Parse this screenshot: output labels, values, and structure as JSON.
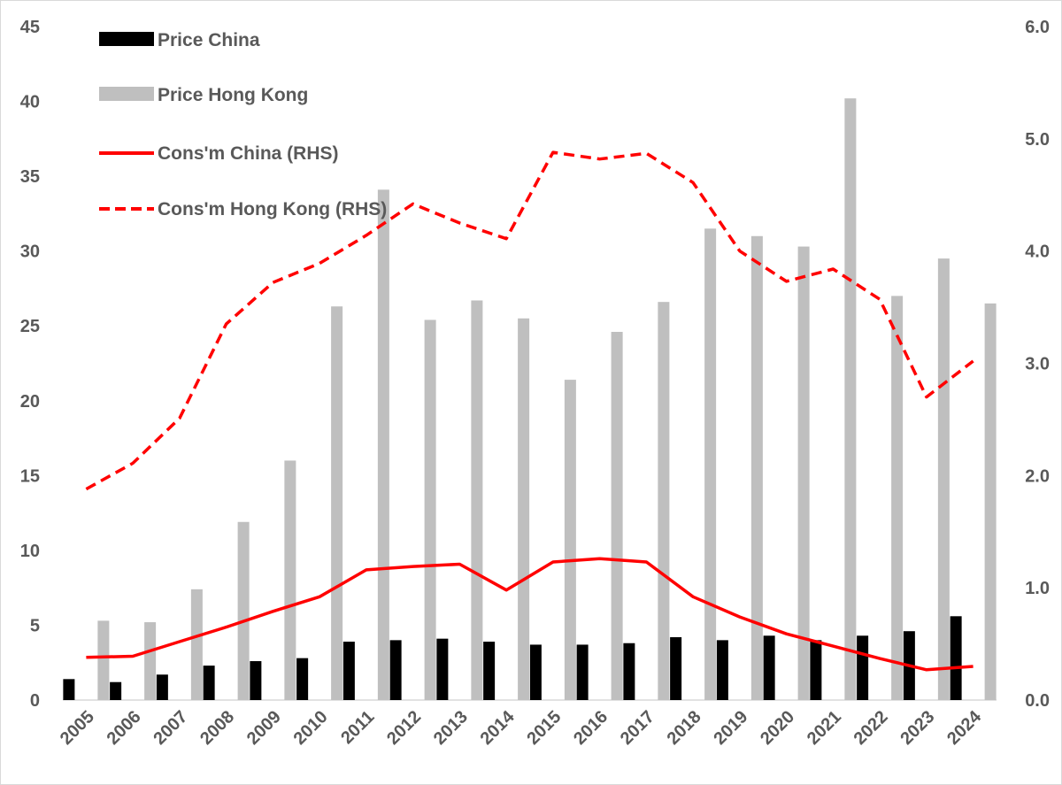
{
  "chart_data": {
    "type": "bar+line",
    "categories": [
      "2005",
      "2006",
      "2007",
      "2008",
      "2009",
      "2010",
      "2011",
      "2012",
      "2013",
      "2014",
      "2015",
      "2016",
      "2017",
      "2018",
      "2019",
      "2020",
      "2021",
      "2022",
      "2023",
      "2024"
    ],
    "bar_series": [
      {
        "name": "Price China",
        "axis": "left",
        "color": "#000000",
        "values": [
          1.4,
          1.2,
          1.7,
          2.3,
          2.6,
          2.8,
          3.9,
          4.0,
          4.1,
          3.9,
          3.7,
          3.7,
          3.8,
          4.2,
          4.0,
          4.3,
          4.0,
          4.3,
          4.6,
          5.6
        ]
      },
      {
        "name": "Price Hong Kong",
        "axis": "left",
        "color": "#bfbfbf",
        "values": [
          5.3,
          5.2,
          7.4,
          11.9,
          16.0,
          26.3,
          34.1,
          25.4,
          26.7,
          25.5,
          21.4,
          24.6,
          26.6,
          31.5,
          31.0,
          30.3,
          40.2,
          27.0,
          29.5,
          26.5
        ]
      }
    ],
    "line_series": [
      {
        "name": "Cons'm China (RHS)",
        "axis": "right",
        "color": "#ff0000",
        "style": "solid",
        "values": [
          0.38,
          0.39,
          0.52,
          0.65,
          0.79,
          0.92,
          1.16,
          1.19,
          1.21,
          0.98,
          1.23,
          1.26,
          1.23,
          0.92,
          0.74,
          0.59,
          0.48,
          0.37,
          0.27,
          0.3
        ]
      },
      {
        "name": "Cons'm Hong Kong (RHS)",
        "axis": "right",
        "color": "#ff0000",
        "style": "dashed",
        "values": [
          1.88,
          2.11,
          2.51,
          3.35,
          3.72,
          3.89,
          4.14,
          4.42,
          4.25,
          4.11,
          4.88,
          4.82,
          4.87,
          4.61,
          4.0,
          3.73,
          3.84,
          3.57,
          2.7,
          3.02
        ]
      }
    ],
    "left_axis": {
      "ylim": [
        0,
        45
      ],
      "ticks": [
        "0",
        "5",
        "10",
        "15",
        "20",
        "25",
        "30",
        "35",
        "40",
        "45"
      ]
    },
    "right_axis": {
      "ylim": [
        0,
        6
      ],
      "ticks": [
        "0.0",
        "1.0",
        "2.0",
        "3.0",
        "4.0",
        "5.0",
        "6.0"
      ]
    },
    "legend": {
      "position": "top-left",
      "entries": [
        "Price China",
        "Price Hong Kong",
        "Cons'm China (RHS)",
        "Cons'm Hong Kong (RHS)"
      ]
    },
    "grid": false,
    "title": "",
    "xlabel": "",
    "ylabel": ""
  }
}
